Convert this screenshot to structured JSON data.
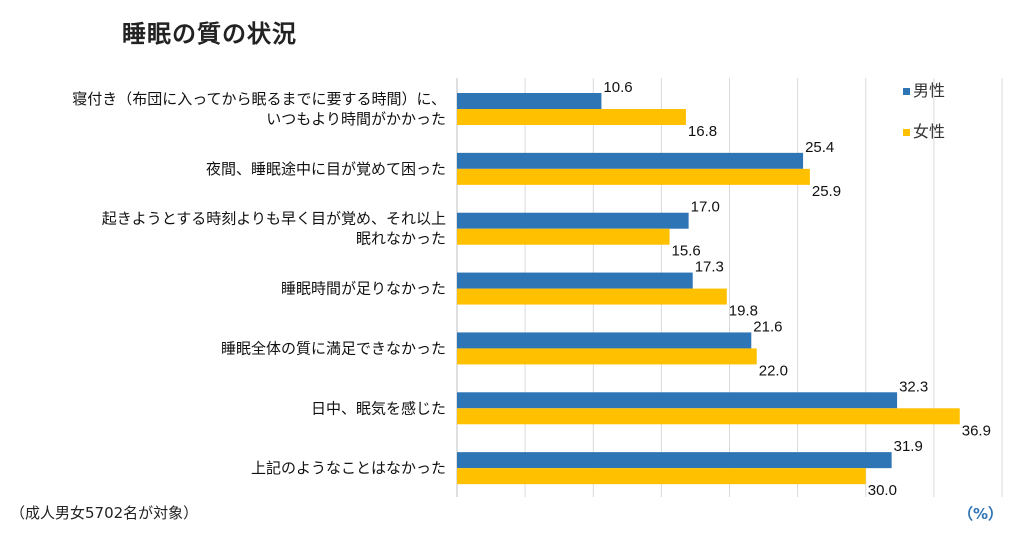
{
  "chart_data": {
    "type": "bar",
    "orientation": "horizontal",
    "title": "睡眠の質の状況",
    "categories": [
      [
        "寝付き（布団に入ってから眠るまでに要する時間）に、",
        "いつもより時間がかかった"
      ],
      [
        "夜間、睡眠途中に目が覚めて困った"
      ],
      [
        "起きようとする時刻よりも早く目が覚め、それ以上",
        "眠れなかった"
      ],
      [
        "睡眠時間が足りなかった"
      ],
      [
        "睡眠全体の質に満足できなかった"
      ],
      [
        "日中、眠気を感じた"
      ],
      [
        "上記のようなことはなかった"
      ]
    ],
    "series": [
      {
        "name": "男性",
        "color": "#2e75b6",
        "values": [
          10.6,
          25.4,
          17.0,
          17.3,
          21.6,
          32.3,
          31.9
        ]
      },
      {
        "name": "女性",
        "color": "#ffc000",
        "values": [
          16.8,
          25.9,
          15.6,
          19.8,
          22.0,
          36.9,
          30.0
        ]
      }
    ],
    "xlim": [
      0,
      40
    ],
    "grid": true,
    "legend_position": "top-right",
    "unit": "（%）",
    "footnote": "（成人男女5702名が対象）"
  }
}
